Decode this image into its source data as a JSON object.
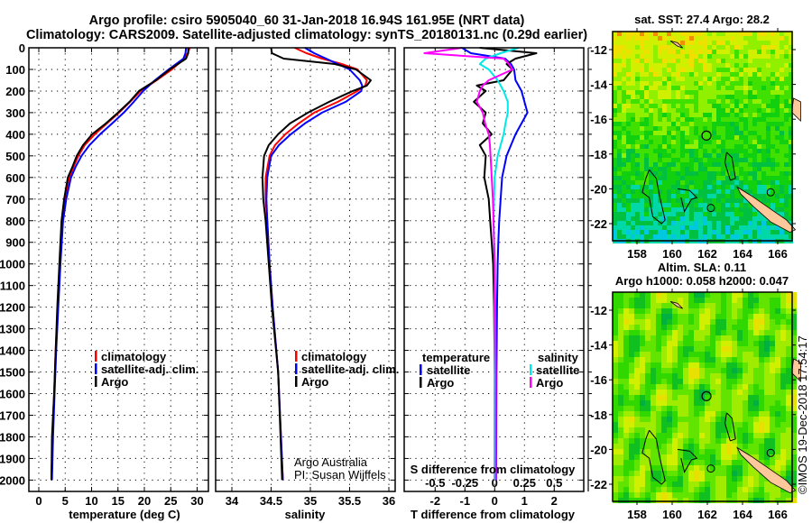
{
  "header": {
    "line1": "Argo profile: csiro 5905040_60 31-Jan-2018 16.94S 161.95E (NRT data)",
    "line2": "Climatology: CARS2009. Satellite-adjusted climatology: synTS_20180131.nc (0.29d earlier)"
  },
  "credit": {
    "line1": "Argo Australia",
    "line2": "PI: Susan Wijffels"
  },
  "copyright": "©IMOS 19-Dec-2018 17:54:17",
  "colors": {
    "climatology": "#ff0000",
    "satellite_t": "#0000ff",
    "argo": "#000000",
    "satellite_s": "#00e8e8",
    "argo_s": "#ff00ff",
    "land": "#ffc89a"
  },
  "chart_data": [
    {
      "type": "line",
      "name": "temperature-profile",
      "xlabel": "temperature (deg C)",
      "ylabel": "",
      "xlim": [
        -1.8,
        32
      ],
      "ylim": [
        2050,
        0
      ],
      "xticks": [
        "0",
        "5",
        "10",
        "15",
        "20",
        "25",
        "30"
      ],
      "xtick_values": [
        0,
        5,
        10,
        15,
        20,
        25,
        30
      ],
      "yticks": [
        "0",
        "100",
        "200",
        "300",
        "400",
        "500",
        "600",
        "700",
        "800",
        "900",
        "1000",
        "1100",
        "1200",
        "1300",
        "1400",
        "1500",
        "1600",
        "1700",
        "1800",
        "1900",
        "2000"
      ],
      "grid": true,
      "legend": [
        "climatology",
        "satellite-adj. clim.",
        "Argo"
      ],
      "depth": [
        0,
        25,
        50,
        100,
        150,
        200,
        250,
        300,
        350,
        400,
        450,
        500,
        550,
        600,
        700,
        800,
        1000,
        1200,
        1400,
        1600,
        1800,
        2000
      ],
      "series": [
        {
          "name": "climatology",
          "values": [
            28.6,
            28.2,
            27.6,
            25.2,
            22.3,
            19.3,
            17.3,
            15.2,
            12.9,
            10.6,
            8.7,
            7.5,
            6.6,
            5.8,
            5.0,
            4.5,
            4.0,
            3.6,
            3.2,
            2.9,
            2.6,
            2.4
          ]
        },
        {
          "name": "satellite-adj. clim.",
          "values": [
            27.9,
            27.8,
            27.4,
            24.6,
            22.0,
            19.8,
            18.0,
            16.1,
            13.9,
            11.6,
            9.6,
            8.1,
            7.0,
            6.1,
            5.2,
            4.6,
            4.1,
            3.7,
            3.3,
            3.0,
            2.7,
            2.5
          ]
        },
        {
          "name": "Argo",
          "values": [
            28.3,
            28.3,
            27.9,
            24.8,
            22.2,
            19.0,
            17.2,
            15.0,
            12.7,
            10.1,
            8.4,
            7.2,
            6.4,
            5.5,
            4.8,
            4.3,
            3.9,
            3.5,
            3.2,
            2.9,
            2.5,
            2.4
          ]
        }
      ]
    },
    {
      "type": "line",
      "name": "salinity-profile",
      "xlabel": "salinity",
      "xlim": [
        33.8,
        36.1
      ],
      "ylim": [
        2050,
        0
      ],
      "xticks": [
        "34",
        "34.5",
        "35",
        "35.5",
        "36"
      ],
      "xtick_values": [
        34,
        34.5,
        35,
        35.5,
        36
      ],
      "grid": true,
      "legend": [
        "climatology",
        "satellite-adj. clim.",
        "Argo"
      ],
      "depth": [
        0,
        25,
        50,
        75,
        100,
        150,
        175,
        200,
        250,
        300,
        350,
        400,
        450,
        500,
        600,
        700,
        800,
        1000,
        1200,
        1500,
        2000
      ],
      "series": [
        {
          "name": "climatology",
          "values": [
            34.8,
            34.95,
            35.15,
            35.4,
            35.6,
            35.72,
            35.7,
            35.6,
            35.35,
            35.05,
            34.85,
            34.68,
            34.55,
            34.48,
            34.43,
            34.43,
            34.45,
            34.48,
            34.52,
            34.59,
            34.65
          ]
        },
        {
          "name": "satellite-adj. clim.",
          "values": [
            34.93,
            35.05,
            35.2,
            35.35,
            35.5,
            35.63,
            35.66,
            35.65,
            35.45,
            35.15,
            34.93,
            34.75,
            34.6,
            34.5,
            34.45,
            34.44,
            34.45,
            34.48,
            34.52,
            34.59,
            34.65
          ]
        },
        {
          "name": "Argo",
          "values": [
            34.5,
            34.51,
            34.66,
            35.31,
            35.58,
            35.77,
            35.72,
            35.54,
            35.24,
            34.97,
            34.74,
            34.59,
            34.47,
            34.41,
            34.39,
            34.4,
            34.43,
            34.47,
            34.51,
            34.59,
            34.64
          ]
        }
      ]
    },
    {
      "type": "line",
      "name": "difference-profile",
      "xlabel": "T difference from climatology",
      "x2label": "S difference from climatology",
      "xlim": [
        -3.1,
        3.05
      ],
      "x2lim": [
        -0.775,
        0.7625
      ],
      "ylim": [
        2050,
        0
      ],
      "xticks": [
        "-2",
        "-1",
        "0",
        "1",
        "2"
      ],
      "xtick_values": [
        -2,
        -1,
        0,
        1,
        2
      ],
      "x2ticks": [
        "-0.5",
        "-0.25",
        "0",
        "0.25",
        "0.5"
      ],
      "x2tick_values": [
        -0.5,
        -0.25,
        0,
        0.25,
        0.5
      ],
      "grid": true,
      "legend_temperature": {
        "title": "temperature",
        "items": [
          "satellite",
          "Argo"
        ]
      },
      "legend_salinity": {
        "title": "salinity",
        "items": [
          "satellite",
          "Argo"
        ]
      },
      "depth": [
        0,
        25,
        50,
        75,
        100,
        150,
        175,
        200,
        250,
        300,
        350,
        400,
        450,
        500,
        600,
        700,
        800,
        900,
        1000,
        1200,
        1500,
        2000
      ],
      "series": [
        {
          "name": "T satellite",
          "axis": "T",
          "values": [
            -1.1,
            -0.8,
            0.35,
            0.55,
            0.65,
            0.7,
            0.8,
            0.9,
            1.0,
            1.1,
            0.9,
            0.7,
            0.55,
            0.4,
            0.25,
            0.2,
            0.15,
            0.12,
            0.1,
            0.08,
            0.06,
            0.05
          ]
        },
        {
          "name": "T Argo",
          "axis": "T",
          "values": [
            -0.5,
            1.4,
            0.7,
            0.4,
            0.6,
            0.3,
            -0.6,
            -0.3,
            -0.7,
            -0.3,
            -0.4,
            -0.1,
            -0.5,
            -0.3,
            -0.35,
            -0.2,
            -0.15,
            -0.1,
            -0.05,
            -0.02,
            0.0,
            0.0
          ]
        },
        {
          "name": "S satellite",
          "axis": "S",
          "values": [
            0.2,
            0.05,
            -0.075,
            -0.125,
            -0.05,
            0.025,
            0.05,
            0.075,
            0.11,
            0.11,
            0.09,
            0.075,
            0.05,
            0.025,
            0.0,
            -0.005,
            -0.01,
            -0.005,
            0.0,
            0.0,
            0.0,
            0.0
          ]
        },
        {
          "name": "S Argo",
          "axis": "S",
          "values": [
            -0.275,
            -0.59,
            0.075,
            0.12,
            0.15,
            -0.05,
            -0.1,
            -0.125,
            -0.15,
            -0.1,
            -0.08,
            -0.05,
            -0.04,
            -0.035,
            -0.025,
            -0.015,
            -0.01,
            -0.005,
            0.0,
            0.005,
            0.01,
            0.01
          ]
        }
      ]
    },
    {
      "type": "heatmap",
      "name": "sst-map",
      "title": "sat. SST: 27.4 Argo: 28.2",
      "xlim": [
        156.7,
        167.3
      ],
      "ylim": [
        -23,
        -11
      ],
      "xticks": [
        "158",
        "160",
        "162",
        "164",
        "166"
      ],
      "xtick_values": [
        158,
        160,
        162,
        164,
        166
      ],
      "yticks": [
        "-12",
        "-14",
        "-16",
        "-18",
        "-20",
        "-22"
      ],
      "ytick_values": [
        -12,
        -14,
        -16,
        -18,
        -20,
        -22
      ],
      "argo_position": [
        161.95,
        -16.94
      ]
    },
    {
      "type": "heatmap",
      "name": "sla-map",
      "title": "Altim. SLA: 0.11",
      "subtitle": "Argo h1000: 0.058 h2000: 0.047",
      "xlim": [
        156.7,
        167.3
      ],
      "ylim": [
        -23,
        -11
      ],
      "xticks": [
        "158",
        "160",
        "162",
        "164",
        "166"
      ],
      "xtick_values": [
        158,
        160,
        162,
        164,
        166
      ],
      "yticks": [
        "-12",
        "-14",
        "-16",
        "-18",
        "-20",
        "-22"
      ],
      "ytick_values": [
        -12,
        -14,
        -16,
        -18,
        -20,
        -22
      ],
      "argo_position": [
        161.95,
        -16.94
      ]
    }
  ]
}
